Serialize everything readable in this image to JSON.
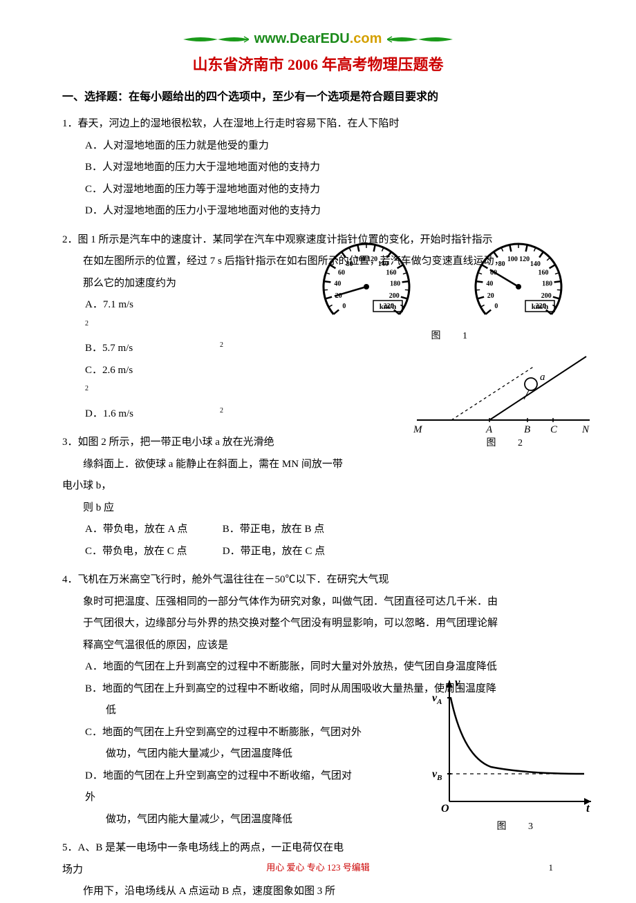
{
  "header": {
    "logo1": "www.",
    "logo2": "DearEDU",
    "logo3": ".com",
    "leaf_color": "#1a9a1a"
  },
  "title": "山东省济南市 2006 年高考物理压题卷",
  "section1": "一、选择题：在每小题给出的四个选项中，至少有一个选项是符合题目要求的",
  "q1": {
    "stem": "1．春天，河边上的湿地很松软，人在湿地上行走时容易下陷．在人下陷时",
    "a": "A．人对湿地地面的压力就是他受的重力",
    "b": "B．人对湿地地面的压力大于湿地地面对他的支持力",
    "c": "C．人对湿地地面的压力等于湿地地面对他的支持力",
    "d": "D．人对湿地地面的压力小于湿地地面对他的支持力"
  },
  "q2": {
    "stem1": "2．图 1 所示是汽车中的速度计．某同学在汽车中观察速度计指针位置的变化，开始时指针指示",
    "stem2": "在如左图所示的位置，经过 7 s 后指针指示在如右图所示的位置，若汽车做匀变速直线运动，",
    "stem3": "那么它的加速度约为",
    "a": "A．7.1 m/s",
    "b": "B．5.7 m/s",
    "c": "C．2.6 m/s",
    "d": "D．1.6 m/s"
  },
  "q3": {
    "stem1": "3．如图 2 所示，把一带正电小球 a 放在光滑绝",
    "stem2": "缘斜面上．欲使球 a 能静止在斜面上，需在 MN 间放一带电小球 b，",
    "stem3": "则 b 应",
    "a": "A．带负电，放在 A 点",
    "b": "B．带正电，放在 B 点",
    "c": "C．带负电，放在 C 点",
    "d": "D．带正电，放在 C 点"
  },
  "q4": {
    "stem1": "4．飞机在万米高空飞行时，舱外气温往往在－50℃以下．在研究大气现",
    "stem2": "象时可把温度、压强相同的一部分气体作为研究对象，叫做气团．气团直径可达几千米．由",
    "stem3": "于气团很大，边缘部分与外界的热交换对整个气团没有明显影响，可以忽略．用气团理论解",
    "stem4": "释高空气温很低的原因，应该是",
    "a": "A．地面的气团在上升到高空的过程中不断膨胀，同时大量对外放热，使气团自身温度降低",
    "b": "B．地面的气团在上升到高空的过程中不断收缩，同时从周围吸收大量热量，使周围温度降",
    "b2": "低",
    "c": "C．地面的气团在上升空到高空的过程中不断膨胀，气团对外",
    "c2": "做功，气团内能大量减少，气团温度降低",
    "d": "D．地面的气团在上升空到高空的过程中不断收缩，气团对外",
    "d2": "做功，气团内能大量减少，气团温度降低"
  },
  "q5": {
    "stem1": "5．A、B 是某一电场中一条电场线上的两点，一正电荷仅在电场力",
    "stem2": "作用下，沿电场线从 A 点运动 B 点，速度图象如图 3 所"
  },
  "fig_labels": {
    "f1": "图 1",
    "f2": "图 2",
    "f3": "图 3"
  },
  "footer": {
    "text": "用心  爱心  专心    123 号编辑",
    "page": "1"
  },
  "speedo": {
    "ticks": [
      "0",
      "20",
      "40",
      "60",
      "80",
      "100",
      "120",
      "140",
      "160",
      "180",
      "200",
      "220"
    ],
    "unit": "km/h",
    "start_deg": -220,
    "end_deg": 40,
    "needle1_value": 20,
    "needle2_value": 60
  },
  "incline": {
    "labels": {
      "M": "M",
      "A": "A",
      "B": "B",
      "C": "C",
      "N": "N",
      "a": "a"
    }
  },
  "graph": {
    "y_label": "v",
    "x_label": "t",
    "va": "v",
    "va_sub": "A",
    "vb": "v",
    "vb_sub": "B"
  }
}
